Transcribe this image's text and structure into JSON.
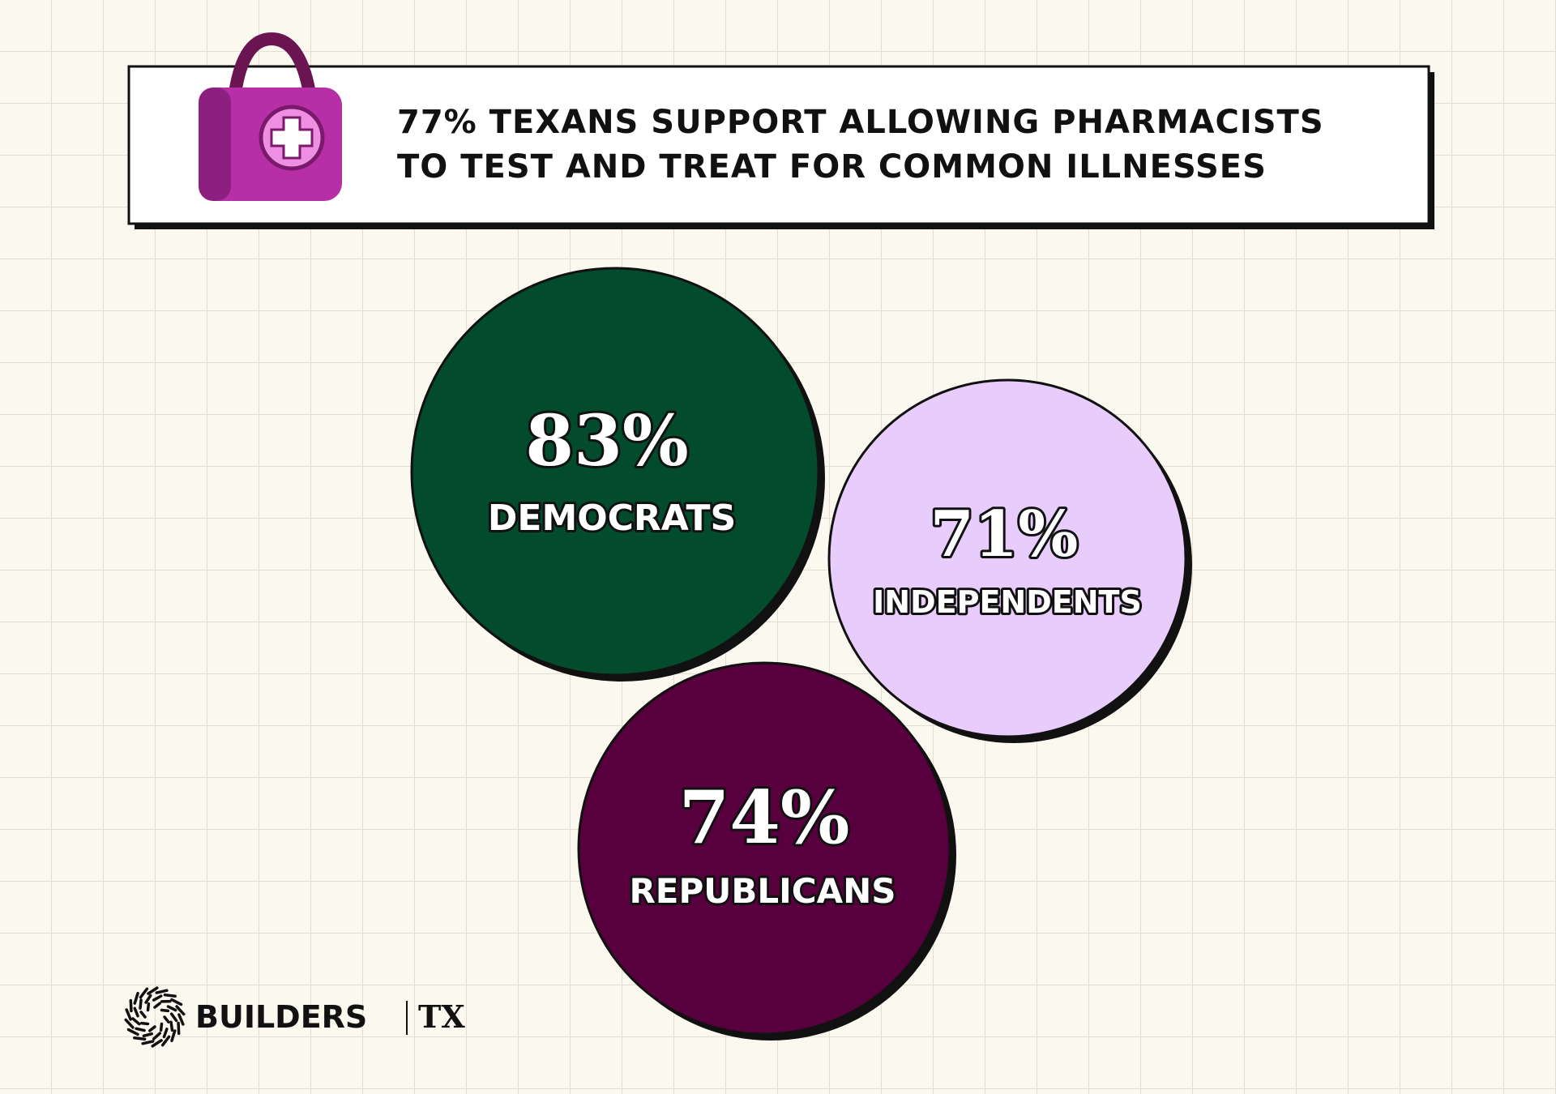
{
  "header": {
    "title": [
      "77% TEXANS SUPPORT ALLOWING PHARMACISTS",
      "TO TEST AND TREAT FOR COMMON ILLNESSES"
    ]
  },
  "groups": [
    {
      "value": "83%",
      "label": "DEMOCRATS"
    },
    {
      "value": "71%",
      "label": "INDEPENDENTS"
    },
    {
      "value": "74%",
      "label": "REPUBLICANS"
    }
  ],
  "footer": {
    "brand": "BUILDERS",
    "region": "TX"
  }
}
